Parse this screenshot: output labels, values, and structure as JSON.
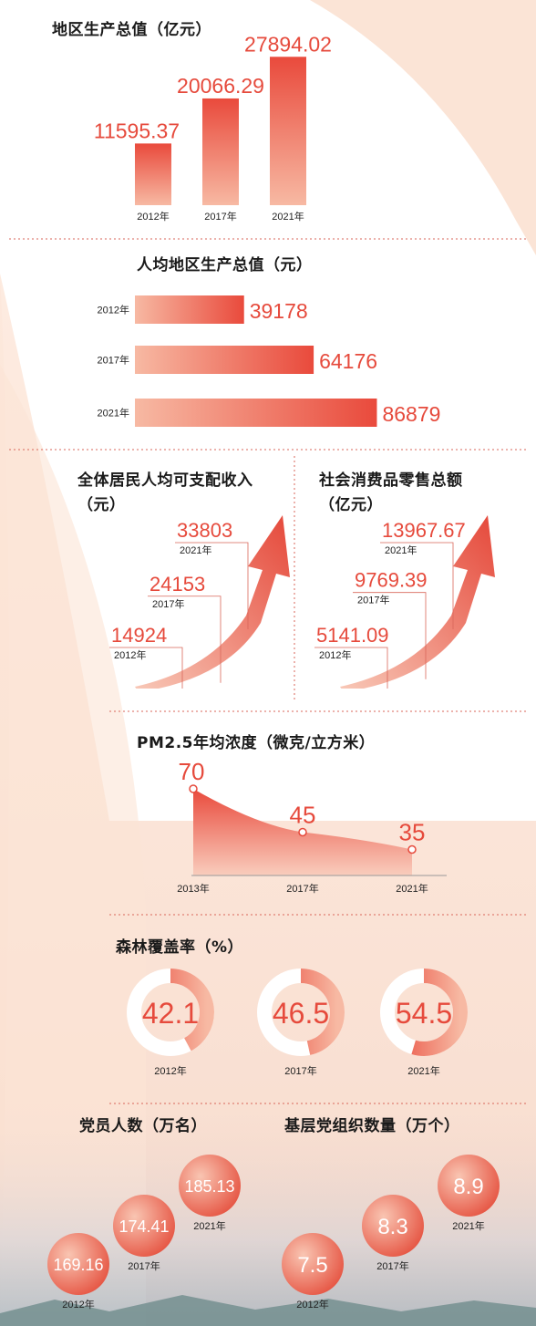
{
  "colors": {
    "accent": "#e64a3c",
    "bar_light": "#f5b3a0",
    "peach_bg": "#fbe4d6"
  },
  "gdp": {
    "title": "地区生产总值（亿元）",
    "chart_data": {
      "type": "bar",
      "title": "地区生产总值（亿元）",
      "categories": [
        "2012年",
        "2017年",
        "2021年"
      ],
      "values": [
        11595.37,
        20066.29,
        27894.02
      ]
    }
  },
  "gdp_pc": {
    "title": "人均地区生产总值（元）",
    "chart_data": {
      "type": "bar",
      "orientation": "horizontal",
      "title": "人均地区生产总值（元）",
      "categories": [
        "2012年",
        "2017年",
        "2021年"
      ],
      "values": [
        39178,
        64176,
        86879
      ]
    }
  },
  "income": {
    "title1": "全体居民人均可支配收入",
    "title2": "（元）",
    "chart_data": {
      "type": "line",
      "title": "全体居民人均可支配收入（元）",
      "categories": [
        "2012年",
        "2017年",
        "2021年"
      ],
      "values": [
        14924,
        24153,
        33803
      ]
    }
  },
  "retail": {
    "title1": "社会消费品零售总额",
    "title2": "（亿元）",
    "chart_data": {
      "type": "line",
      "title": "社会消费品零售总额（亿元）",
      "categories": [
        "2012年",
        "2017年",
        "2021年"
      ],
      "values": [
        5141.09,
        9769.39,
        13967.67
      ]
    }
  },
  "pm": {
    "title": "PM2.5年均浓度（微克/立方米）",
    "chart_data": {
      "type": "area",
      "title": "PM2.5年均浓度（微克/立方米）",
      "categories": [
        "2013年",
        "2017年",
        "2021年"
      ],
      "values": [
        70,
        45,
        35
      ]
    }
  },
  "forest": {
    "title": "森林覆盖率（%）",
    "chart_data": {
      "type": "pie",
      "title": "森林覆盖率（%）",
      "categories": [
        "2012年",
        "2017年",
        "2021年"
      ],
      "values": [
        42.1,
        46.5,
        54.5
      ]
    }
  },
  "members": {
    "title": "党员人数（万名）",
    "chart_data": {
      "type": "scatter",
      "title": "党员人数（万名）",
      "categories": [
        "2012年",
        "2017年",
        "2021年"
      ],
      "values": [
        169.16,
        174.41,
        185.13
      ]
    }
  },
  "orgs": {
    "title": "基层党组织数量（万个）",
    "chart_data": {
      "type": "scatter",
      "title": "基层党组织数量（万个）",
      "categories": [
        "2012年",
        "2017年",
        "2021年"
      ],
      "values": [
        7.5,
        8.3,
        8.9
      ]
    }
  }
}
